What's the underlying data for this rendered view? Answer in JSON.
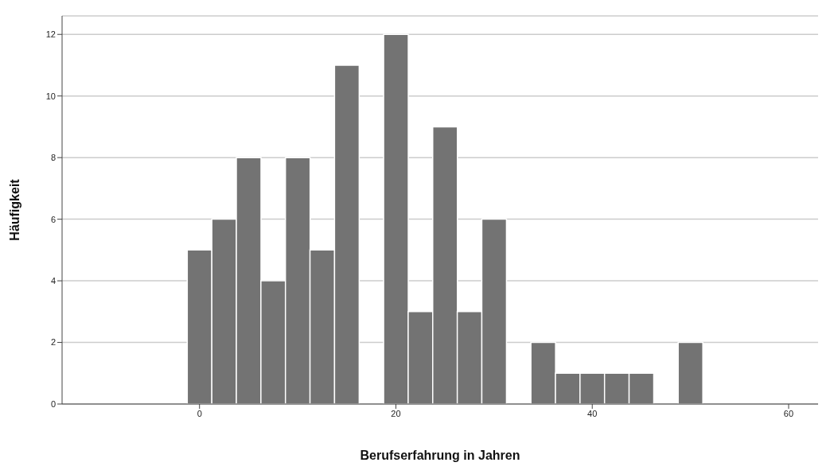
{
  "chart_data": {
    "type": "histogram",
    "xlabel": "Berufserfahrung in Jahren",
    "ylabel": "Häufigkeit",
    "bins": [
      -1.25,
      1.25,
      3.75,
      6.25,
      8.75,
      11.25,
      13.75,
      16.25,
      18.75,
      21.25,
      23.75,
      26.25,
      28.75,
      31.25,
      33.75,
      36.25,
      38.75,
      41.25,
      43.75,
      46.25,
      48.75,
      51.25
    ],
    "values": [
      5,
      6,
      8,
      4,
      8,
      5,
      11,
      0,
      12,
      3,
      9,
      3,
      6,
      0,
      2,
      1,
      1,
      1,
      1,
      0,
      2
    ],
    "color": "#737373",
    "xlim": [
      -14,
      63
    ],
    "xticks": [
      0,
      20,
      40,
      60
    ],
    "ylim": [
      0,
      12.6
    ],
    "yticks": [
      0,
      2,
      4,
      6,
      8,
      10,
      12
    ],
    "grid": "y"
  }
}
